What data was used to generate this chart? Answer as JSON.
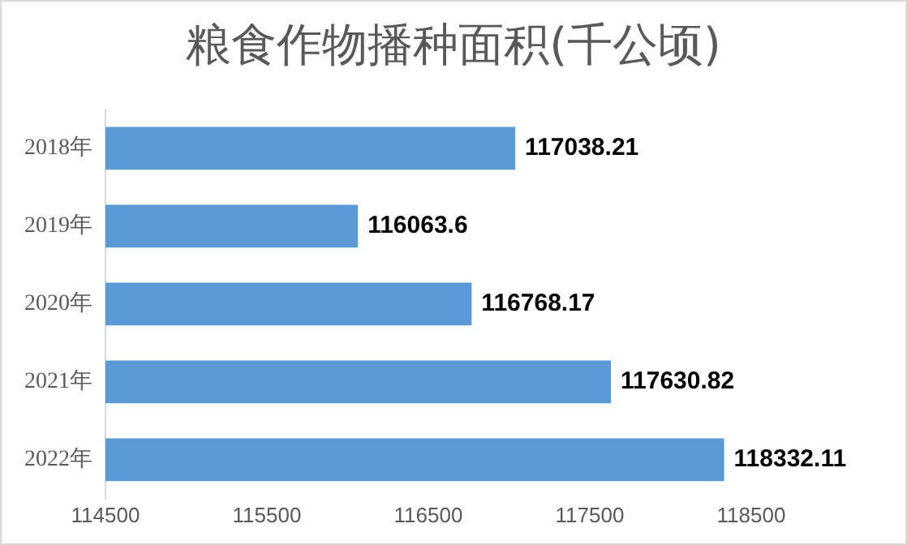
{
  "chart_data": {
    "type": "bar",
    "orientation": "horizontal",
    "title": "粮食作物播种面积(千公顷)",
    "categories": [
      "2018年",
      "2019年",
      "2020年",
      "2021年",
      "2022年"
    ],
    "values": [
      117038.21,
      116063.6,
      116768.17,
      117630.82,
      118332.11
    ],
    "color": "#5b9bd5",
    "data_labels": true,
    "xlim": [
      114500,
      118500
    ],
    "xticks": [
      114500,
      115500,
      116500,
      117500,
      118500
    ],
    "grid": false
  }
}
